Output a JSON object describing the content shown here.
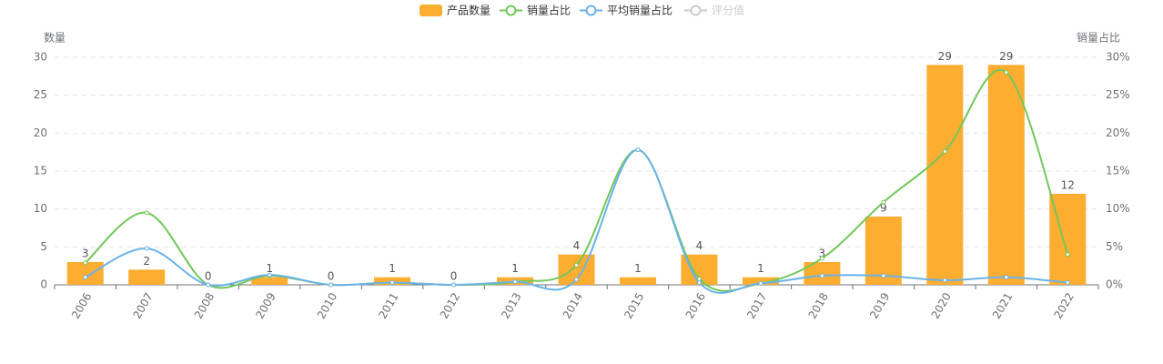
{
  "chart_data": {
    "type": "bar",
    "categories": [
      "2006",
      "2007",
      "2008",
      "2009",
      "2010",
      "2011",
      "2012",
      "2013",
      "2014",
      "2015",
      "2016",
      "2017",
      "2018",
      "2019",
      "2020",
      "2021",
      "2022"
    ],
    "series": [
      {
        "name": "产品数量",
        "type": "bar",
        "color": "#fdad30",
        "values": [
          3,
          2,
          0,
          1,
          0,
          1,
          0,
          1,
          4,
          1,
          4,
          1,
          3,
          9,
          29,
          29,
          12
        ]
      },
      {
        "name": "销量占比",
        "type": "line",
        "axis": "y2",
        "color": "#73c75a",
        "values": [
          2.9,
          9.5,
          0,
          1.2,
          0,
          0.3,
          0,
          0.4,
          2.6,
          17.8,
          0.8,
          0.2,
          3.5,
          10.9,
          17.6,
          28,
          4.0
        ]
      },
      {
        "name": "平均销量占比",
        "type": "line",
        "axis": "y2",
        "color": "#6cb2e8",
        "values": [
          1.0,
          4.8,
          0,
          1.3,
          0,
          0.3,
          0,
          0.4,
          0.7,
          17.8,
          0.3,
          0.2,
          1.2,
          1.2,
          0.6,
          1.0,
          0.3
        ]
      }
    ],
    "inactive_legend": [
      "评分值"
    ],
    "y_label": "数量",
    "y2_label": "销量占比",
    "ylim": [
      0,
      30
    ],
    "yticks": [
      0,
      5,
      10,
      15,
      20,
      25,
      30
    ],
    "y2lim": [
      0,
      30
    ],
    "y2ticks": [
      {
        "value": 0,
        "label": "0%"
      },
      {
        "value": 5,
        "label": "5%"
      },
      {
        "value": 10,
        "label": "10%"
      },
      {
        "value": 15,
        "label": "15%"
      },
      {
        "value": 20,
        "label": "20%"
      },
      {
        "value": 25,
        "label": "25%"
      },
      {
        "value": 30,
        "label": "30%"
      }
    ],
    "grid": true,
    "legend": "top"
  }
}
